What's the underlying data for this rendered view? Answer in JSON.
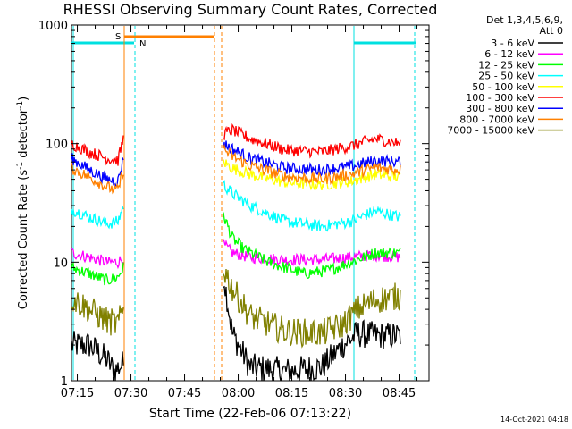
{
  "chart_data": {
    "type": "line",
    "title": "RHESSI Observing Summary Count Rates, Corrected",
    "xlabel": "Start Time (22-Feb-06 07:13:22)",
    "ylabel_main": "Corrected Count Rate (s",
    "ylabel_sup": "-1",
    "ylabel_mid": " detector",
    "ylabel_tail": ")",
    "x_ticks": [
      "07:15",
      "07:30",
      "07:45",
      "08:00",
      "08:15",
      "08:30",
      "08:45"
    ],
    "y_ticks": [
      "1",
      "10",
      "100",
      "1000"
    ],
    "ylim": [
      1,
      1000
    ],
    "yscale": "log",
    "xrange_minutes": [
      0,
      100
    ],
    "timestamp": "14-Oct-2021 04:18",
    "legend_header": [
      "Det 1,3,4,5,6,9,",
      "Att 0"
    ],
    "markers": [
      {
        "label": "S",
        "color": "#ff8000"
      },
      {
        "label": "N",
        "color": "#00e0e0"
      }
    ],
    "series": [
      {
        "name": "3 - 6 keV",
        "color": "#000000",
        "seg1": [
          [
            "0",
            "2"
          ],
          [
            "5",
            "2"
          ],
          [
            "10",
            "1.5"
          ],
          [
            "12",
            "1.2"
          ],
          [
            "14.5",
            "1.4"
          ]
        ],
        "seg2": [
          [
            "42.5",
            "8"
          ],
          [
            "45",
            "2.5"
          ],
          [
            "50",
            "1.3"
          ],
          [
            "60",
            "1.2"
          ],
          [
            "70",
            "1.3"
          ],
          [
            "76",
            "2.0"
          ],
          [
            "80",
            "2.5"
          ],
          [
            "85",
            "2.4"
          ],
          [
            "92",
            "2.4"
          ]
        ]
      },
      {
        "name": "6 - 12 keV",
        "color": "#ff00ff",
        "seg1": [
          [
            "0",
            "12"
          ],
          [
            "5",
            "11"
          ],
          [
            "10",
            "10"
          ],
          [
            "13",
            "10"
          ],
          [
            "14.5",
            "11"
          ]
        ],
        "seg2": [
          [
            "42.5",
            "14"
          ],
          [
            "45",
            "12"
          ],
          [
            "50",
            "11"
          ],
          [
            "60",
            "10.5"
          ],
          [
            "70",
            "10.5"
          ],
          [
            "78",
            "11"
          ],
          [
            "85",
            "11.5"
          ],
          [
            "92",
            "11"
          ]
        ]
      },
      {
        "name": "12 - 25 keV",
        "color": "#00ff00",
        "seg1": [
          [
            "0",
            "9"
          ],
          [
            "5",
            "8"
          ],
          [
            "10",
            "7"
          ],
          [
            "13",
            "7.5"
          ],
          [
            "14.5",
            "9"
          ]
        ],
        "seg2": [
          [
            "42.5",
            "25"
          ],
          [
            "45",
            "16"
          ],
          [
            "48",
            "13"
          ],
          [
            "55",
            "10"
          ],
          [
            "65",
            "8"
          ],
          [
            "72",
            "8.5"
          ],
          [
            "78",
            "10"
          ],
          [
            "85",
            "12"
          ],
          [
            "92",
            "12"
          ]
        ]
      },
      {
        "name": "25 - 50 keV",
        "color": "#00ffff",
        "seg1": [
          [
            "0",
            "28"
          ],
          [
            "5",
            "24"
          ],
          [
            "10",
            "21"
          ],
          [
            "13",
            "22"
          ],
          [
            "14.5",
            "30"
          ]
        ],
        "seg2": [
          [
            "42.5",
            "45"
          ],
          [
            "45",
            "38"
          ],
          [
            "50",
            "30"
          ],
          [
            "60",
            "22"
          ],
          [
            "70",
            "20"
          ],
          [
            "78",
            "22"
          ],
          [
            "85",
            "27"
          ],
          [
            "92",
            "24"
          ]
        ]
      },
      {
        "name": "50 - 100 keV",
        "color": "#ffff00",
        "seg1": [],
        "seg2": [
          [
            "42.5",
            "70"
          ],
          [
            "45",
            "62"
          ],
          [
            "50",
            "55"
          ],
          [
            "60",
            "47"
          ],
          [
            "70",
            "45"
          ],
          [
            "78",
            "48"
          ],
          [
            "85",
            "55"
          ],
          [
            "92",
            "52"
          ]
        ]
      },
      {
        "name": "100 - 300 keV",
        "color": "#ff0000",
        "seg1": [
          [
            "0",
            "100"
          ],
          [
            "5",
            "85"
          ],
          [
            "10",
            "75"
          ],
          [
            "13",
            "72"
          ],
          [
            "14.5",
            "110"
          ]
        ],
        "seg2": [
          [
            "42.5",
            "120"
          ],
          [
            "45",
            "130"
          ],
          [
            "50",
            "110"
          ],
          [
            "60",
            "88"
          ],
          [
            "70",
            "85"
          ],
          [
            "78",
            "95"
          ],
          [
            "85",
            "110"
          ],
          [
            "92",
            "100"
          ]
        ]
      },
      {
        "name": "300 - 800 keV",
        "color": "#0000ff",
        "seg1": [
          [
            "0",
            "75"
          ],
          [
            "5",
            "60"
          ],
          [
            "10",
            "50"
          ],
          [
            "13",
            "48"
          ],
          [
            "14.5",
            "75"
          ]
        ],
        "seg2": [
          [
            "42.5",
            "100"
          ],
          [
            "45",
            "90"
          ],
          [
            "50",
            "75"
          ],
          [
            "60",
            "62"
          ],
          [
            "70",
            "60"
          ],
          [
            "78",
            "64"
          ],
          [
            "85",
            "72"
          ],
          [
            "92",
            "70"
          ]
        ]
      },
      {
        "name": "800 - 7000 keV",
        "color": "#ff8000",
        "seg1": [
          [
            "0",
            "62"
          ],
          [
            "5",
            "52"
          ],
          [
            "10",
            "43"
          ],
          [
            "13",
            "40"
          ],
          [
            "14.5",
            "60"
          ]
        ],
        "seg2": [
          [
            "42.5",
            "90"
          ],
          [
            "45",
            "78"
          ],
          [
            "50",
            "65"
          ],
          [
            "60",
            "53"
          ],
          [
            "70",
            "50"
          ],
          [
            "78",
            "55"
          ],
          [
            "85",
            "63"
          ],
          [
            "92",
            "60"
          ]
        ]
      },
      {
        "name": "7000 - 15000 keV",
        "color": "#808000",
        "seg1": [
          [
            "0",
            "5"
          ],
          [
            "5",
            "4"
          ],
          [
            "10",
            "3.2"
          ],
          [
            "13",
            "3.0"
          ],
          [
            "14.5",
            "4"
          ]
        ],
        "seg2": [
          [
            "42.5",
            "9"
          ],
          [
            "45",
            "6"
          ],
          [
            "50",
            "3.5"
          ],
          [
            "60",
            "2.6"
          ],
          [
            "70",
            "2.5"
          ],
          [
            "76",
            "3.0"
          ],
          [
            "80",
            "4"
          ],
          [
            "85",
            "4.8"
          ],
          [
            "92",
            "5.2"
          ]
        ]
      }
    ]
  }
}
